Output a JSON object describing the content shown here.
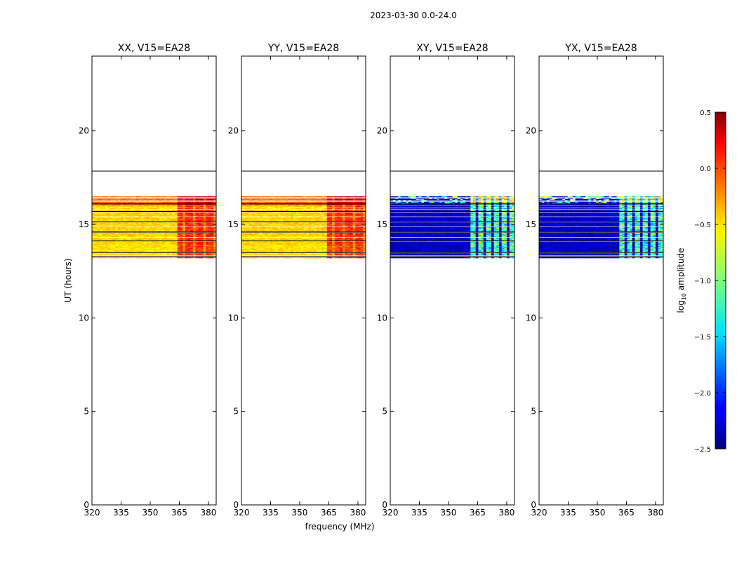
{
  "suptitle": "2023-03-30 0.0-24.0",
  "chart_data": {
    "type": "heatmap",
    "panels": [
      {
        "title": "XX, V15=EA28",
        "scheme": "parallel"
      },
      {
        "title": "YY, V15=EA28",
        "scheme": "parallel"
      },
      {
        "title": "XY, V15=EA28",
        "scheme": "cross"
      },
      {
        "title": "YX, V15=EA28",
        "scheme": "cross"
      }
    ],
    "xlabel": "frequency (MHz)",
    "ylabel": "UT (hours)",
    "xlim": [
      320,
      384
    ],
    "ylim": [
      0,
      24
    ],
    "xticks": [
      320,
      335,
      350,
      365,
      380
    ],
    "yticks": [
      0,
      5,
      10,
      15,
      20
    ],
    "data_range_hours": [
      13.2,
      16.5
    ],
    "line_hours": 17.85,
    "colorbar": {
      "label": "log10 amplitude",
      "min": -2.5,
      "max": 0.5,
      "ticks": [
        0.5,
        0.0,
        -0.5,
        -1.0,
        -1.5,
        -2.0,
        -2.5
      ],
      "colormap": "jet"
    },
    "approx_values": {
      "parallel_low_band": -0.5,
      "parallel_high_band_above_363MHz": 0.0,
      "cross_low_band": -2.3,
      "cross_high_band_above_361MHz": -1.2
    }
  }
}
